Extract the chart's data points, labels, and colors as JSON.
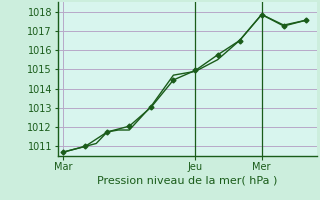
{
  "xlabel": "Pression niveau de la mer( hPa )",
  "background_color": "#cceedd",
  "plot_bg_color": "#d8f5ee",
  "grid_color": "#b8a8c8",
  "line_color": "#1a5c1a",
  "axis_color": "#1a5c1a",
  "tick_color": "#1a5c1a",
  "ylim": [
    1010.5,
    1018.5
  ],
  "yticks": [
    1011,
    1012,
    1013,
    1014,
    1015,
    1016,
    1017,
    1018
  ],
  "xtick_labels": [
    "Mar",
    "Jeu",
    "Mer"
  ],
  "xtick_positions": [
    0,
    12,
    18
  ],
  "xlim": [
    -0.5,
    23
  ],
  "line1_x": [
    0,
    2,
    3,
    4,
    5,
    6,
    8,
    10,
    12,
    14,
    16,
    18,
    20,
    22
  ],
  "line1_y": [
    1010.7,
    1011.0,
    1011.15,
    1011.75,
    1011.85,
    1011.85,
    1013.1,
    1014.7,
    1014.9,
    1015.5,
    1016.5,
    1017.85,
    1017.3,
    1017.55
  ],
  "line2_x": [
    0,
    2,
    4,
    6,
    8,
    10,
    12,
    14,
    16,
    18,
    20,
    22
  ],
  "line2_y": [
    1010.7,
    1011.0,
    1011.75,
    1012.05,
    1013.05,
    1014.45,
    1014.95,
    1015.75,
    1016.5,
    1017.85,
    1017.25,
    1017.55
  ],
  "vline_positions": [
    12,
    18
  ],
  "xlabel_fontsize": 8,
  "tick_fontsize": 7
}
